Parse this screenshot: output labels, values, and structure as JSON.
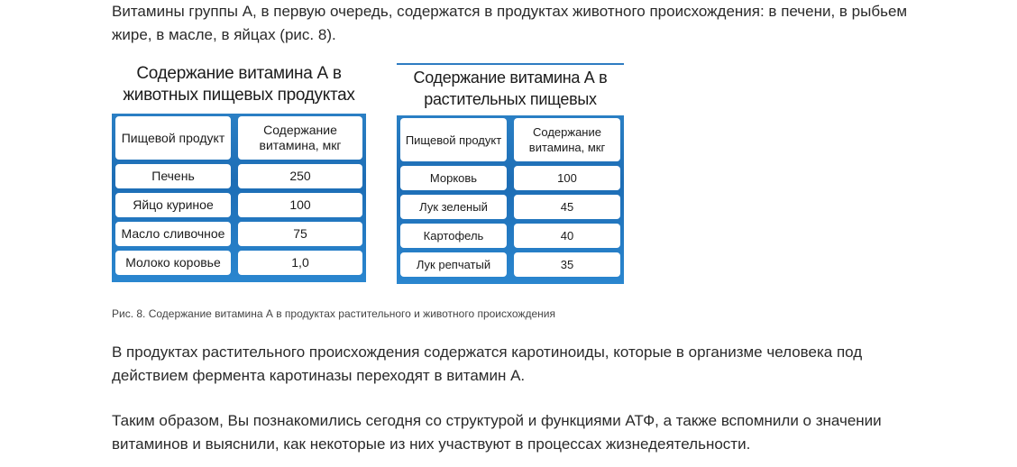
{
  "intro_text": "Витамины группы А, в первую очередь, содержатся в продуктах животного происхождения: в печени, в рыбьем жире, в масле, в яйцах (рис. 8).",
  "figure_animal": {
    "title": "Содержание витамина А в животных пищевых продуктах",
    "headers": [
      "Пищевой продукт",
      "Содержание витамина, мкг"
    ],
    "rows": [
      {
        "product": "Печень",
        "value": "250"
      },
      {
        "product": "Яйцо куриное",
        "value": "100"
      },
      {
        "product": "Масло сливочное",
        "value": "75"
      },
      {
        "product": "Молоко коровье",
        "value": "1,0"
      }
    ]
  },
  "figure_plant": {
    "title": "Содержание витамина А в растительных пищевых продуктах",
    "headers": [
      "Пищевой продукт",
      "Содержание витамина, мкг"
    ],
    "rows": [
      {
        "product": "Морковь",
        "value": "100"
      },
      {
        "product": "Лук зеленый",
        "value": "45"
      },
      {
        "product": "Картофель",
        "value": "40"
      },
      {
        "product": "Лук репчатый",
        "value": "35"
      }
    ]
  },
  "caption": "Рис. 8. Содержание витамина А в продуктах растительного и животного происхождения",
  "paragraph2": "В продуктах растительного происхождения содержатся каротиноиды, которые в организме человека под действием фермента каротиназы переходят в витамин А.",
  "paragraph3": "Таким образом, Вы познакомились сегодня со структурой и функциями АТФ, а также вспомнили о значении витаминов и выяснили, как некоторые из них участвуют в процессах жизнедеятельности."
}
